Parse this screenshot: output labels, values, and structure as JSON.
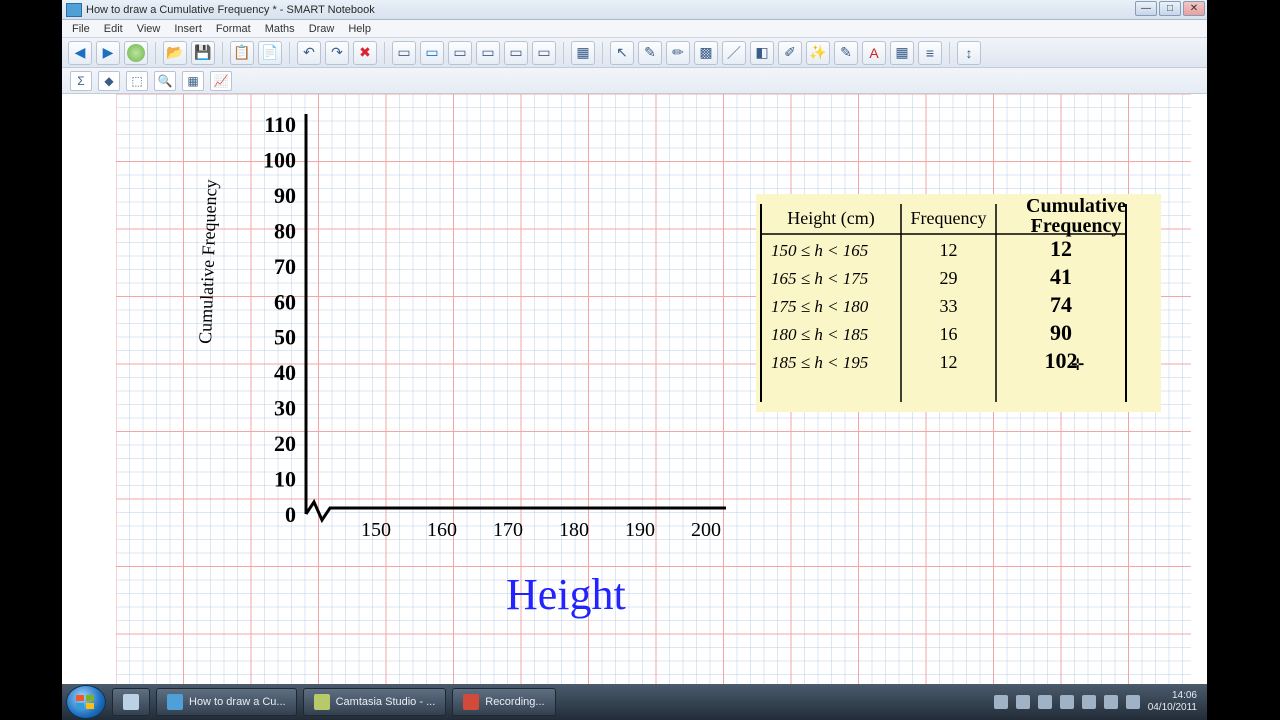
{
  "window": {
    "title": "How to draw a Cumulative Frequency * - SMART Notebook"
  },
  "menu": [
    "File",
    "Edit",
    "View",
    "Insert",
    "Format",
    "Maths",
    "Draw",
    "Help"
  ],
  "taskbar": {
    "items": [
      {
        "label": "How to draw a Cu..."
      },
      {
        "label": "Camtasia Studio - ..."
      },
      {
        "label": "Recording..."
      }
    ],
    "time": "14:06",
    "date": "04/10/2011"
  },
  "chart": {
    "background_color": "#ffffff",
    "major_grid_color": "#f2a7a7",
    "minor_grid_color": "#b8cfe8",
    "axis_color": "#000000",
    "axis_width": 3,
    "x": {
      "label": "Height",
      "label_color": "#2323ff",
      "label_fontsize": 44,
      "ticks": [
        150,
        160,
        170,
        180,
        190,
        200
      ]
    },
    "y": {
      "label": "Cumulative Frequency",
      "ticks": [
        0,
        10,
        20,
        30,
        40,
        50,
        60,
        70,
        80,
        90,
        100,
        110
      ]
    },
    "table": {
      "bg": "#fbf6c8",
      "headers": [
        "Height (cm)",
        "Frequency",
        "Cumulative Frequency"
      ],
      "header3_handwritten": true,
      "rows": [
        {
          "range": "150 ≤ h < 165",
          "freq": "12",
          "cum": "12"
        },
        {
          "range": "165 ≤ h < 175",
          "freq": "29",
          "cum": "41"
        },
        {
          "range": "175 ≤ h < 180",
          "freq": "33",
          "cum": "74"
        },
        {
          "range": "180 ≤ h < 185",
          "freq": "16",
          "cum": "90"
        },
        {
          "range": "185 ≤ h < 195",
          "freq": "12",
          "cum": "102"
        }
      ]
    }
  }
}
